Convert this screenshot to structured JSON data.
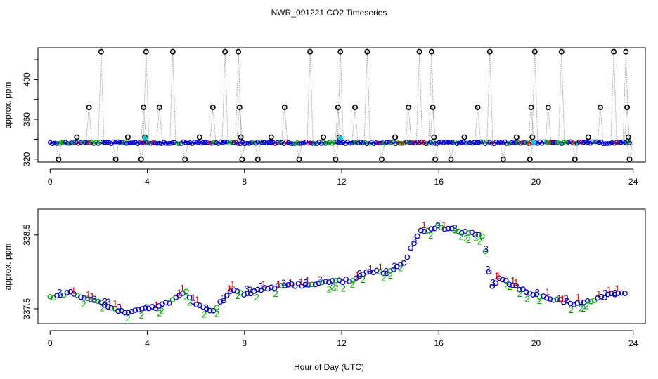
{
  "chart_data": {
    "title": "NWR_091221  CO2 Timeseries",
    "xlabel": "Hour of Day (UTC)",
    "panels": [
      {
        "id": "top",
        "type": "scatter",
        "ylabel": "approx. ppm",
        "xlim": [
          -0.5,
          24.5
        ],
        "ylim": [
          317,
          432
        ],
        "xticks": [
          0,
          4,
          8,
          12,
          16,
          20,
          24
        ],
        "yticks": [
          320,
          360,
          400
        ],
        "baseline_ppm": 336.5,
        "spike_series": {
          "name": "outliers",
          "marker": "open-circle",
          "color": "#000000",
          "points": [
            {
              "x": 0.35,
              "y": 320
            },
            {
              "x": 1.1,
              "y": 342
            },
            {
              "x": 1.6,
              "y": 372
            },
            {
              "x": 2.1,
              "y": 428
            },
            {
              "x": 2.7,
              "y": 320
            },
            {
              "x": 3.2,
              "y": 342
            },
            {
              "x": 3.75,
              "y": 320
            },
            {
              "x": 3.85,
              "y": 372
            },
            {
              "x": 3.9,
              "y": 342
            },
            {
              "x": 3.95,
              "y": 428
            },
            {
              "x": 4.5,
              "y": 372
            },
            {
              "x": 5.05,
              "y": 428
            },
            {
              "x": 5.55,
              "y": 320
            },
            {
              "x": 6.15,
              "y": 342
            },
            {
              "x": 6.7,
              "y": 372
            },
            {
              "x": 7.2,
              "y": 428
            },
            {
              "x": 7.75,
              "y": 428
            },
            {
              "x": 7.8,
              "y": 372
            },
            {
              "x": 7.85,
              "y": 342
            },
            {
              "x": 7.9,
              "y": 320
            },
            {
              "x": 8.55,
              "y": 320
            },
            {
              "x": 9.1,
              "y": 342
            },
            {
              "x": 9.65,
              "y": 372
            },
            {
              "x": 10.25,
              "y": 320
            },
            {
              "x": 10.7,
              "y": 428
            },
            {
              "x": 11.25,
              "y": 342
            },
            {
              "x": 11.75,
              "y": 320
            },
            {
              "x": 11.85,
              "y": 372
            },
            {
              "x": 11.9,
              "y": 342
            },
            {
              "x": 11.95,
              "y": 428
            },
            {
              "x": 12.55,
              "y": 372
            },
            {
              "x": 13.05,
              "y": 428
            },
            {
              "x": 13.65,
              "y": 320
            },
            {
              "x": 14.2,
              "y": 342
            },
            {
              "x": 14.75,
              "y": 372
            },
            {
              "x": 15.2,
              "y": 428
            },
            {
              "x": 15.7,
              "y": 428
            },
            {
              "x": 15.75,
              "y": 372
            },
            {
              "x": 15.8,
              "y": 342
            },
            {
              "x": 15.85,
              "y": 320
            },
            {
              "x": 16.5,
              "y": 320
            },
            {
              "x": 17.05,
              "y": 342
            },
            {
              "x": 17.6,
              "y": 372
            },
            {
              "x": 18.1,
              "y": 428
            },
            {
              "x": 18.65,
              "y": 320
            },
            {
              "x": 19.2,
              "y": 342
            },
            {
              "x": 19.75,
              "y": 320
            },
            {
              "x": 19.8,
              "y": 372
            },
            {
              "x": 19.85,
              "y": 342
            },
            {
              "x": 19.95,
              "y": 428
            },
            {
              "x": 20.5,
              "y": 372
            },
            {
              "x": 21.05,
              "y": 428
            },
            {
              "x": 21.6,
              "y": 320
            },
            {
              "x": 22.15,
              "y": 342
            },
            {
              "x": 22.65,
              "y": 372
            },
            {
              "x": 23.2,
              "y": 428
            },
            {
              "x": 23.7,
              "y": 428
            },
            {
              "x": 23.75,
              "y": 372
            },
            {
              "x": 23.8,
              "y": 342
            },
            {
              "x": 23.85,
              "y": 320
            }
          ]
        },
        "highlight_series": {
          "name": "flagged",
          "marker": "filled-circle",
          "color": "#00c8d0",
          "points": [
            {
              "x": 3.9,
              "y": 341
            },
            {
              "x": 11.95,
              "y": 341
            },
            {
              "x": 19.9,
              "y": 337
            }
          ]
        },
        "baseline_series": [
          {
            "name": "1",
            "color": "#d00000"
          },
          {
            "name": "2",
            "color": "#00aa00"
          },
          {
            "name": "3",
            "color": "#0000cc"
          }
        ]
      },
      {
        "id": "bottom",
        "type": "scatter",
        "ylabel": "approx. ppm",
        "xlim": [
          -0.5,
          24.5
        ],
        "ylim": [
          337.3,
          338.85
        ],
        "xticks": [
          0,
          4,
          8,
          12,
          16,
          20,
          24
        ],
        "yticks": [
          337.5,
          338.5
        ],
        "series_labels": [
          "1",
          "2",
          "3"
        ],
        "series_colors": [
          "#d00000",
          "#00aa00",
          "#0000cc"
        ],
        "curve": [
          [
            0.0,
            337.65
          ],
          [
            0.4,
            337.68
          ],
          [
            0.9,
            337.72
          ],
          [
            1.3,
            337.66
          ],
          [
            1.8,
            337.6
          ],
          [
            2.3,
            337.55
          ],
          [
            2.8,
            337.47
          ],
          [
            3.2,
            337.45
          ],
          [
            3.6,
            337.48
          ],
          [
            4.0,
            337.5
          ],
          [
            4.4,
            337.52
          ],
          [
            4.9,
            337.58
          ],
          [
            5.3,
            337.66
          ],
          [
            5.6,
            337.75
          ],
          [
            5.9,
            337.58
          ],
          [
            6.3,
            337.52
          ],
          [
            6.7,
            337.48
          ],
          [
            7.0,
            337.58
          ],
          [
            7.3,
            337.68
          ],
          [
            7.6,
            337.78
          ],
          [
            7.9,
            337.7
          ],
          [
            8.5,
            337.74
          ],
          [
            9.0,
            337.78
          ],
          [
            9.5,
            337.8
          ],
          [
            10.0,
            337.82
          ],
          [
            10.5,
            337.83
          ],
          [
            11.0,
            337.85
          ],
          [
            11.5,
            337.86
          ],
          [
            12.0,
            337.87
          ],
          [
            12.5,
            337.9
          ],
          [
            13.0,
            337.98
          ],
          [
            13.4,
            338.02
          ],
          [
            13.8,
            337.97
          ],
          [
            14.2,
            338.05
          ],
          [
            14.6,
            338.15
          ],
          [
            14.9,
            338.35
          ],
          [
            15.2,
            338.55
          ],
          [
            15.6,
            338.58
          ],
          [
            16.0,
            338.62
          ],
          [
            16.4,
            338.58
          ],
          [
            16.8,
            338.55
          ],
          [
            17.3,
            338.52
          ],
          [
            17.8,
            338.5
          ],
          [
            18.0,
            338.1
          ],
          [
            18.2,
            337.82
          ],
          [
            18.5,
            337.92
          ],
          [
            18.9,
            337.85
          ],
          [
            19.3,
            337.78
          ],
          [
            19.6,
            337.72
          ],
          [
            20.0,
            337.68
          ],
          [
            20.4,
            337.66
          ],
          [
            20.8,
            337.62
          ],
          [
            21.2,
            337.6
          ],
          [
            21.6,
            337.57
          ],
          [
            22.0,
            337.6
          ],
          [
            22.5,
            337.63
          ],
          [
            23.0,
            337.68
          ],
          [
            23.5,
            337.72
          ],
          [
            23.8,
            337.73
          ]
        ]
      }
    ]
  }
}
